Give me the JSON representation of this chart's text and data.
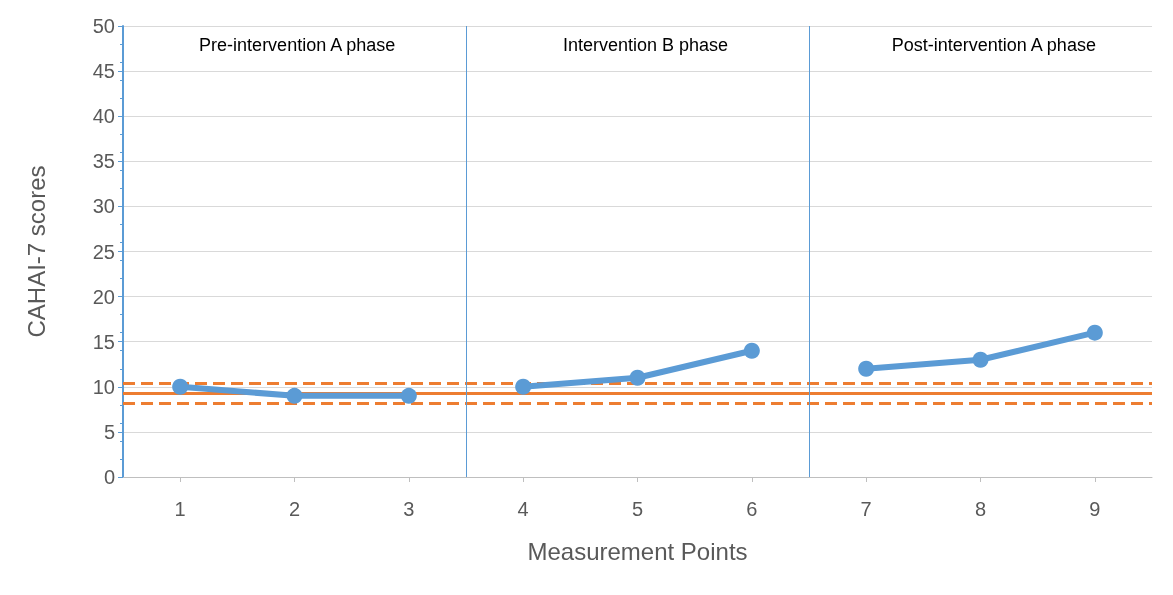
{
  "chart_data": {
    "type": "line",
    "xlabel": "Measurement Points",
    "ylabel": "CAHAI-7 scores",
    "xlim": [
      0.5,
      9.5
    ],
    "xticks": [
      1,
      2,
      3,
      4,
      5,
      6,
      7,
      8,
      9
    ],
    "ylim": [
      0,
      50
    ],
    "yticks": [
      0,
      5,
      10,
      15,
      20,
      25,
      30,
      35,
      40,
      45,
      50
    ],
    "series": [
      {
        "color": "#5b9bd5",
        "x": [
          1,
          2,
          3
        ],
        "values": [
          10,
          9,
          9
        ]
      },
      {
        "color": "#5b9bd5",
        "x": [
          4,
          5,
          6
        ],
        "values": [
          10,
          11,
          14
        ]
      },
      {
        "color": "#5b9bd5",
        "x": [
          7,
          8,
          9
        ],
        "values": [
          12,
          13,
          16
        ]
      }
    ],
    "ref_lines": [
      {
        "axis": "y",
        "value": 9.3,
        "color": "#ed7d31",
        "line_style": "solid"
      },
      {
        "axis": "y",
        "value": 10.4,
        "color": "#ed7d31",
        "line_style": "dashed"
      },
      {
        "axis": "y",
        "value": 8.2,
        "color": "#ed7d31",
        "line_style": "dashed"
      },
      {
        "axis": "x",
        "value": 3.5,
        "color": "#5b9bd5",
        "line_style": "solid"
      },
      {
        "axis": "x",
        "value": 6.5,
        "color": "#5b9bd5",
        "line_style": "solid"
      }
    ],
    "annotations": [
      "Pre-intervention A phase",
      "Intervention B phase",
      "Post-intervention A phase"
    ],
    "grid": "y",
    "marker": "circle",
    "line_style": "solid"
  }
}
